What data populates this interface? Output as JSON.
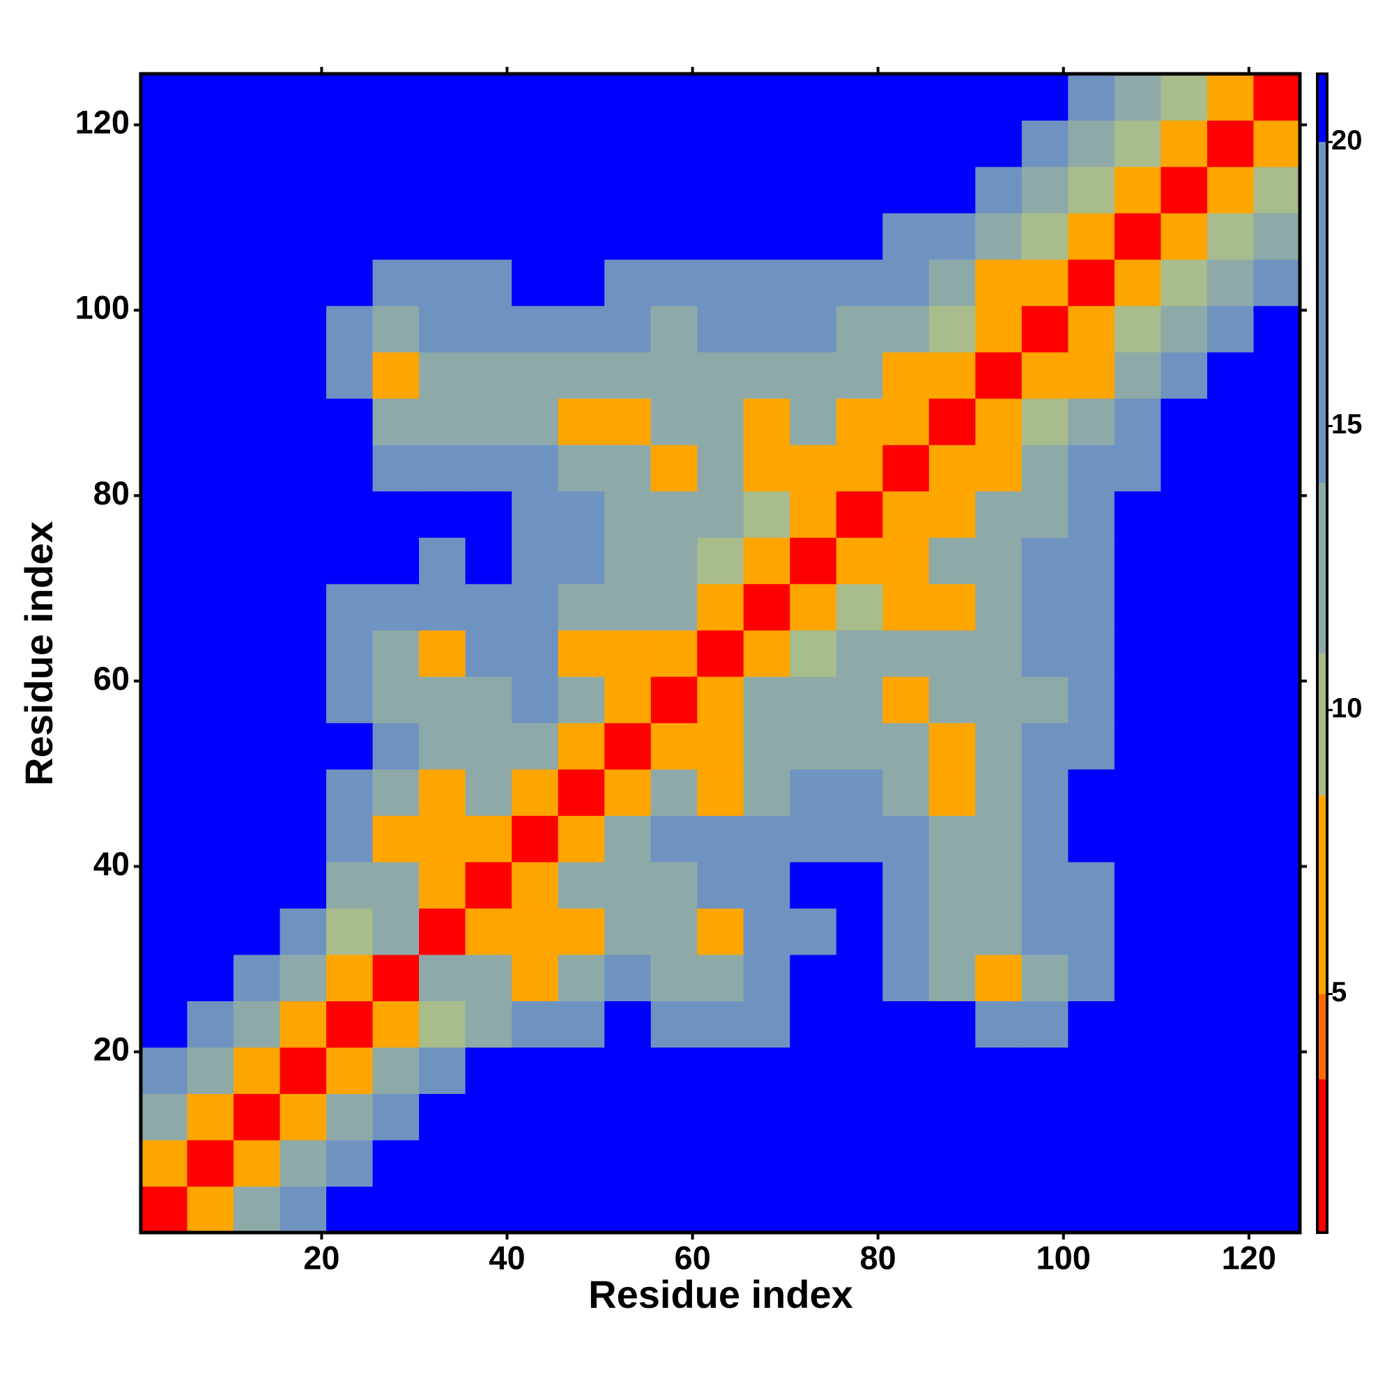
{
  "chart_data": {
    "type": "heatmap",
    "xlabel": "Residue index",
    "ylabel": "Residue index",
    "xlim": [
      0.5,
      125.5
    ],
    "ylim": [
      0.5,
      125.5
    ],
    "xticks": [
      20,
      40,
      60,
      80,
      100,
      120
    ],
    "yticks": [
      20,
      40,
      60,
      80,
      100,
      120
    ],
    "x": [
      3,
      8,
      13,
      18,
      23,
      28,
      33,
      38,
      43,
      48,
      53,
      58,
      63,
      68,
      73,
      78,
      83,
      88,
      93,
      98,
      103,
      108,
      113,
      118,
      123
    ],
    "y": [
      3,
      8,
      13,
      18,
      23,
      28,
      33,
      38,
      43,
      48,
      53,
      58,
      63,
      68,
      73,
      78,
      83,
      88,
      93,
      98,
      103,
      108,
      113,
      118,
      123
    ],
    "values": [
      [
        2,
        7,
        12,
        16,
        21,
        21,
        21,
        21,
        21,
        21,
        21,
        21,
        21,
        21,
        21,
        21,
        21,
        21,
        21,
        21,
        21,
        21,
        21,
        21,
        21
      ],
      [
        7,
        2,
        7,
        12,
        16,
        21,
        21,
        21,
        21,
        21,
        21,
        21,
        21,
        21,
        21,
        21,
        21,
        21,
        21,
        21,
        21,
        21,
        21,
        21,
        21
      ],
      [
        12,
        7,
        2,
        7,
        12,
        16,
        21,
        21,
        21,
        21,
        21,
        21,
        21,
        21,
        21,
        21,
        21,
        21,
        21,
        21,
        21,
        21,
        21,
        21,
        21
      ],
      [
        16,
        12,
        7,
        2,
        7,
        12,
        16,
        21,
        21,
        21,
        21,
        21,
        21,
        21,
        21,
        21,
        21,
        21,
        21,
        21,
        21,
        21,
        21,
        21,
        21
      ],
      [
        21,
        16,
        12,
        7,
        2,
        7,
        11,
        14,
        15,
        17,
        21,
        17,
        15,
        18,
        21,
        21,
        21,
        21,
        16,
        18,
        21,
        21,
        21,
        21,
        21
      ],
      [
        21,
        21,
        16,
        12,
        7,
        2,
        12,
        13,
        7,
        13,
        15,
        14,
        14,
        17,
        21,
        21,
        17,
        14,
        7,
        14,
        17,
        21,
        21,
        21,
        21
      ],
      [
        21,
        21,
        21,
        16,
        11,
        12,
        2,
        7,
        7,
        7,
        14,
        13,
        7,
        15,
        17,
        21,
        16,
        14,
        13,
        16,
        19,
        21,
        21,
        21,
        21
      ],
      [
        21,
        21,
        21,
        21,
        14,
        13,
        7,
        2,
        6,
        12,
        13,
        14,
        15,
        18,
        21,
        21,
        18,
        14,
        14,
        16,
        20,
        21,
        21,
        21,
        21
      ],
      [
        21,
        21,
        21,
        21,
        15,
        7,
        7,
        6,
        2,
        7,
        12,
        15,
        15,
        16,
        18,
        18,
        15,
        13,
        14,
        17,
        21,
        21,
        21,
        21,
        21
      ],
      [
        21,
        21,
        21,
        21,
        17,
        13,
        7,
        12,
        7,
        2,
        6,
        12,
        7,
        14,
        15,
        15,
        13,
        7,
        14,
        15,
        21,
        21,
        21,
        21,
        21
      ],
      [
        21,
        21,
        21,
        21,
        21,
        15,
        14,
        13,
        12,
        6,
        2,
        6,
        7,
        13,
        14,
        14,
        13,
        7,
        13,
        15,
        16,
        21,
        21,
        21,
        21
      ],
      [
        21,
        21,
        21,
        21,
        17,
        14,
        13,
        14,
        15,
        12,
        6,
        2,
        6,
        12,
        13,
        14,
        7,
        12,
        13,
        14,
        16,
        21,
        21,
        21,
        21
      ],
      [
        21,
        21,
        21,
        21,
        15,
        14,
        7,
        15,
        15,
        7,
        7,
        6,
        2,
        6,
        11,
        13,
        13,
        13,
        13,
        15,
        17,
        21,
        21,
        21,
        21
      ],
      [
        21,
        21,
        21,
        21,
        18,
        17,
        15,
        18,
        16,
        14,
        13,
        12,
        6,
        2,
        6,
        11,
        7,
        7,
        13,
        15,
        18,
        21,
        21,
        21,
        21
      ],
      [
        21,
        21,
        21,
        21,
        21,
        21,
        17,
        21,
        18,
        15,
        14,
        13,
        11,
        6,
        2,
        6,
        7,
        12,
        13,
        16,
        18,
        21,
        21,
        21,
        21
      ],
      [
        21,
        21,
        21,
        21,
        21,
        21,
        21,
        21,
        18,
        15,
        14,
        14,
        13,
        11,
        6,
        2,
        6,
        7,
        12,
        14,
        16,
        21,
        21,
        21,
        21
      ],
      [
        21,
        21,
        21,
        21,
        21,
        17,
        16,
        18,
        15,
        13,
        13,
        7,
        13,
        7,
        7,
        6,
        2,
        7,
        7,
        12,
        15,
        19,
        21,
        21,
        21
      ],
      [
        21,
        21,
        21,
        21,
        21,
        14,
        14,
        14,
        13,
        7,
        7,
        12,
        13,
        7,
        12,
        7,
        7,
        2,
        7,
        9,
        12,
        16,
        21,
        21,
        21
      ],
      [
        21,
        21,
        21,
        21,
        16,
        7,
        13,
        14,
        14,
        14,
        13,
        13,
        13,
        13,
        13,
        12,
        7,
        7,
        2,
        7,
        8,
        12,
        16,
        21,
        21
      ],
      [
        21,
        21,
        21,
        21,
        18,
        14,
        16,
        16,
        17,
        15,
        15,
        14,
        15,
        15,
        16,
        14,
        12,
        9,
        7,
        2,
        7,
        9,
        12,
        16,
        21
      ],
      [
        21,
        21,
        21,
        21,
        21,
        17,
        19,
        20,
        21,
        21,
        16,
        16,
        17,
        18,
        18,
        16,
        15,
        12,
        8,
        7,
        2,
        7,
        9,
        12,
        16
      ],
      [
        21,
        21,
        21,
        21,
        21,
        21,
        21,
        21,
        21,
        21,
        21,
        21,
        21,
        21,
        21,
        21,
        19,
        16,
        12,
        9,
        7,
        2,
        7,
        9,
        12
      ],
      [
        21,
        21,
        21,
        21,
        21,
        21,
        21,
        21,
        21,
        21,
        21,
        21,
        21,
        21,
        21,
        21,
        21,
        21,
        16,
        12,
        9,
        7,
        2,
        7,
        9
      ],
      [
        21,
        21,
        21,
        21,
        21,
        21,
        21,
        21,
        21,
        21,
        21,
        21,
        21,
        21,
        21,
        21,
        21,
        21,
        21,
        16,
        12,
        9,
        7,
        2,
        7
      ],
      [
        21,
        21,
        21,
        21,
        21,
        21,
        21,
        21,
        21,
        21,
        21,
        21,
        21,
        21,
        21,
        21,
        21,
        21,
        21,
        21,
        16,
        12,
        9,
        7,
        2
      ]
    ],
    "colorbar": {
      "clim": [
        0.8,
        21.2
      ],
      "ticks": [
        5,
        10,
        15,
        20
      ],
      "bins": [
        0.8,
        3.5,
        5,
        8.5,
        11,
        14,
        20,
        21.2
      ],
      "colors": [
        "#ff0000",
        "#ff6a00",
        "#ffa500",
        "#a8bc8c",
        "#8eaaa8",
        "#6f93c0",
        "#0000ff"
      ]
    }
  }
}
